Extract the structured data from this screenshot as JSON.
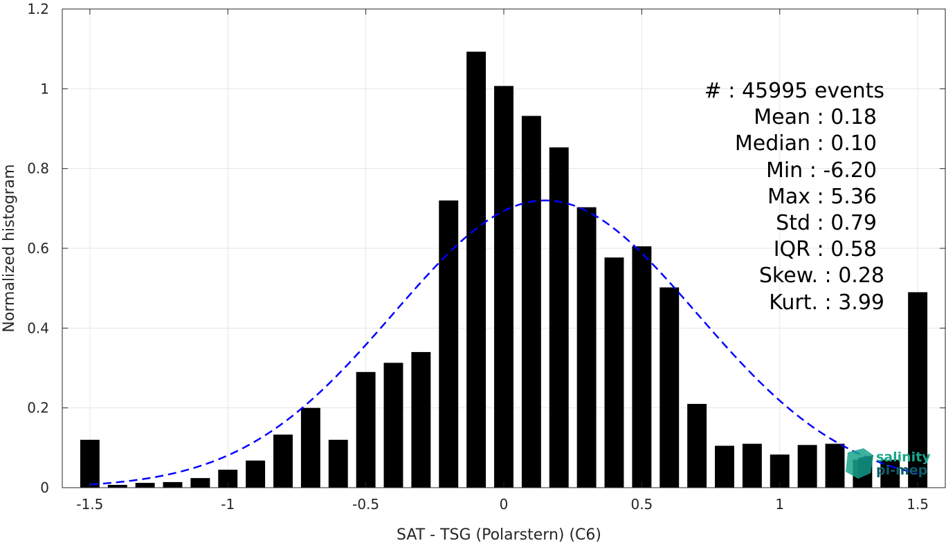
{
  "chart_data": {
    "type": "bar",
    "xlabel": "SAT - TSG (Polarstern) (C6)",
    "ylabel": "Normalized histogram",
    "xlim": [
      -1.6,
      1.6
    ],
    "ylim": [
      0,
      1.2
    ],
    "xticks": [
      -1.5,
      -1,
      -0.5,
      0,
      0.5,
      1,
      1.5
    ],
    "xtick_labels": [
      "-1.5",
      "-1",
      "-0.5",
      "0",
      "0.5",
      "1",
      "1.5"
    ],
    "yticks": [
      0,
      0.2,
      0.4,
      0.6,
      0.8,
      1,
      1.2
    ],
    "ytick_labels": [
      "0",
      "0.2",
      "0.4",
      "0.6",
      "0.8",
      "1",
      "1.2"
    ],
    "grid": true,
    "bar_width": 0.07,
    "bars": [
      {
        "x": -1.5,
        "y": 0.12
      },
      {
        "x": -1.4,
        "y": 0.007
      },
      {
        "x": -1.3,
        "y": 0.012
      },
      {
        "x": -1.2,
        "y": 0.014
      },
      {
        "x": -1.1,
        "y": 0.024
      },
      {
        "x": -1.0,
        "y": 0.045
      },
      {
        "x": -0.9,
        "y": 0.068
      },
      {
        "x": -0.8,
        "y": 0.133
      },
      {
        "x": -0.7,
        "y": 0.2
      },
      {
        "x": -0.6,
        "y": 0.12
      },
      {
        "x": -0.5,
        "y": 0.29
      },
      {
        "x": -0.4,
        "y": 0.313
      },
      {
        "x": -0.3,
        "y": 0.34
      },
      {
        "x": -0.2,
        "y": 0.72
      },
      {
        "x": -0.1,
        "y": 1.093
      },
      {
        "x": 0.0,
        "y": 1.007
      },
      {
        "x": 0.1,
        "y": 0.932
      },
      {
        "x": 0.2,
        "y": 0.853
      },
      {
        "x": 0.3,
        "y": 0.703
      },
      {
        "x": 0.4,
        "y": 0.577
      },
      {
        "x": 0.5,
        "y": 0.605
      },
      {
        "x": 0.6,
        "y": 0.502
      },
      {
        "x": 0.7,
        "y": 0.21
      },
      {
        "x": 0.8,
        "y": 0.105
      },
      {
        "x": 0.9,
        "y": 0.11
      },
      {
        "x": 1.0,
        "y": 0.083
      },
      {
        "x": 1.1,
        "y": 0.107
      },
      {
        "x": 1.2,
        "y": 0.11
      },
      {
        "x": 1.3,
        "y": 0.07
      },
      {
        "x": 1.4,
        "y": 0.07
      },
      {
        "x": 1.5,
        "y": 0.49
      }
    ],
    "gaussian_fit": {
      "mean": 0.15,
      "std": 0.55,
      "peak": 0.72,
      "x_range": [
        -1.5,
        1.5
      ],
      "style": "dashed"
    },
    "stats": {
      "count": "#  : 45995 events",
      "mean": "Mean : 0.18",
      "median": "Median : 0.10",
      "min": "Min : -6.20",
      "max": "Max : 5.36",
      "std": "Std : 0.79",
      "iqr": "IQR : 0.58",
      "skew": "Skew. : 0.28",
      "kurt": "Kurt. : 3.99"
    }
  },
  "logo": {
    "line1": "salinity",
    "line2": "pi-mep"
  },
  "colors": {
    "bar": "#000000",
    "fit_line": "#0000ff",
    "grid": "#e6e6e6",
    "axis": "#262626",
    "logo_primary": "#1aa58c",
    "logo_secondary": "#0e5f6a"
  }
}
